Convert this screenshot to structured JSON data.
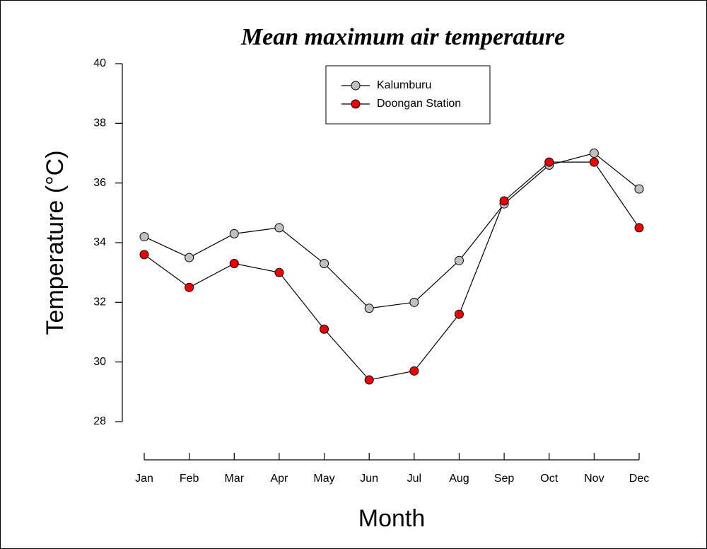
{
  "chart_data": {
    "type": "line",
    "title": "Mean maximum air temperature",
    "x_label": "Month",
    "y_label": "Temperature (°C)",
    "categories": [
      "Jan",
      "Feb",
      "Mar",
      "Apr",
      "May",
      "Jun",
      "Jul",
      "Aug",
      "Sep",
      "Oct",
      "Nov",
      "Dec"
    ],
    "series": [
      {
        "name": "Kalumburu",
        "color": "#c0c0c0",
        "values": [
          34.2,
          33.5,
          34.3,
          34.5,
          33.3,
          31.8,
          32.0,
          33.4,
          35.3,
          36.6,
          37.0,
          35.8
        ]
      },
      {
        "name": "Doongan Station",
        "color": "#ee0000",
        "values": [
          33.6,
          32.5,
          33.3,
          33.0,
          31.1,
          29.4,
          29.7,
          31.6,
          35.4,
          36.7,
          36.7,
          34.5
        ]
      }
    ],
    "ylim": [
      28,
      40
    ],
    "yticks": [
      28,
      30,
      32,
      34,
      36,
      38,
      40
    ],
    "grid": false,
    "legend": "upper center"
  }
}
